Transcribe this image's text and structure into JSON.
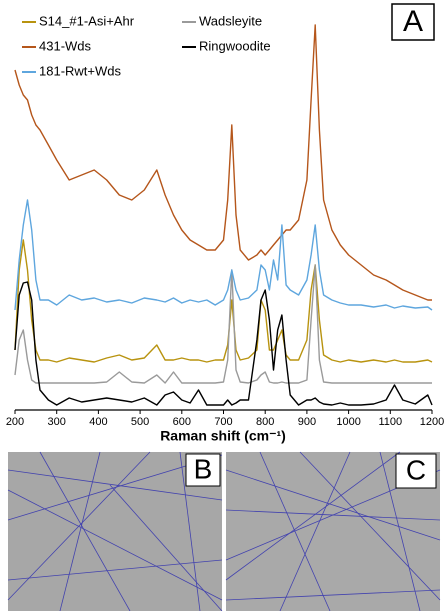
{
  "chart_data": {
    "type": "line",
    "panel_label": "A",
    "xlabel": "Raman shift (cm⁻¹)",
    "x": [
      200,
      210,
      220,
      230,
      240,
      250,
      260,
      280,
      300,
      330,
      360,
      390,
      420,
      450,
      480,
      510,
      540,
      560,
      580,
      600,
      620,
      640,
      660,
      680,
      700,
      710,
      720,
      730,
      740,
      760,
      780,
      790,
      800,
      810,
      820,
      830,
      840,
      850,
      860,
      880,
      900,
      910,
      920,
      930,
      940,
      960,
      980,
      1000,
      1030,
      1060,
      1090,
      1110,
      1130,
      1160,
      1190,
      1200
    ],
    "xlim": [
      200,
      1200
    ],
    "xticks": [
      200,
      300,
      400,
      500,
      600,
      700,
      800,
      900,
      1000,
      1100,
      1200
    ],
    "ylim": [
      0,
      410
    ],
    "series": [
      {
        "name": "S14_#1-Asi+Ahr",
        "color": "#b8930f",
        "values": [
          60,
          140,
          170,
          140,
          90,
          60,
          50,
          50,
          48,
          52,
          50,
          48,
          52,
          55,
          50,
          52,
          65,
          50,
          50,
          52,
          50,
          50,
          48,
          50,
          50,
          65,
          110,
          60,
          50,
          52,
          60,
          110,
          100,
          60,
          60,
          70,
          80,
          55,
          50,
          50,
          70,
          120,
          145,
          90,
          55,
          50,
          48,
          50,
          48,
          50,
          48,
          50,
          48,
          48,
          50,
          48
        ]
      },
      {
        "name": "Wadsleyite",
        "color": "#9a9a9a",
        "values": [
          35,
          70,
          80,
          50,
          30,
          27,
          27,
          27,
          27,
          27,
          27,
          27,
          28,
          38,
          28,
          27,
          35,
          27,
          38,
          27,
          27,
          27,
          27,
          27,
          28,
          50,
          140,
          40,
          28,
          27,
          30,
          35,
          38,
          28,
          27,
          27,
          28,
          27,
          27,
          27,
          30,
          90,
          145,
          50,
          28,
          27,
          27,
          27,
          27,
          27,
          27,
          27,
          27,
          27,
          27,
          27
        ]
      },
      {
        "name": "431-Wds",
        "color": "#b5561b",
        "values": [
          340,
          325,
          315,
          310,
          295,
          285,
          280,
          265,
          250,
          230,
          235,
          240,
          230,
          215,
          210,
          220,
          240,
          215,
          195,
          180,
          170,
          165,
          160,
          160,
          170,
          210,
          285,
          195,
          160,
          150,
          155,
          160,
          155,
          160,
          165,
          170,
          175,
          180,
          180,
          190,
          230,
          310,
          385,
          280,
          210,
          180,
          165,
          155,
          145,
          135,
          130,
          125,
          120,
          115,
          110,
          110
        ]
      },
      {
        "name": "Ringwoodite",
        "color": "#000000",
        "values": [
          60,
          115,
          127,
          128,
          110,
          50,
          20,
          10,
          5,
          12,
          8,
          10,
          12,
          10,
          8,
          12,
          5,
          15,
          18,
          10,
          7,
          20,
          5,
          5,
          5,
          10,
          5,
          7,
          10,
          10,
          70,
          110,
          120,
          90,
          40,
          80,
          95,
          50,
          15,
          5,
          10,
          10,
          12,
          8,
          6,
          5,
          7,
          5,
          5,
          6,
          10,
          25,
          10,
          6,
          15,
          5
        ]
      },
      {
        "name": "181-Rwt+Wds",
        "color": "#5ea6de",
        "values": [
          100,
          150,
          185,
          210,
          180,
          130,
          110,
          110,
          105,
          115,
          110,
          112,
          108,
          110,
          107,
          112,
          110,
          108,
          112,
          107,
          110,
          108,
          110,
          105,
          110,
          120,
          140,
          120,
          110,
          112,
          120,
          145,
          140,
          120,
          150,
          130,
          185,
          125,
          120,
          115,
          130,
          155,
          185,
          140,
          115,
          110,
          107,
          105,
          105,
          103,
          105,
          102,
          104,
          102,
          103,
          100
        ]
      }
    ]
  },
  "panels": [
    {
      "label": "B"
    },
    {
      "label": "C"
    }
  ]
}
